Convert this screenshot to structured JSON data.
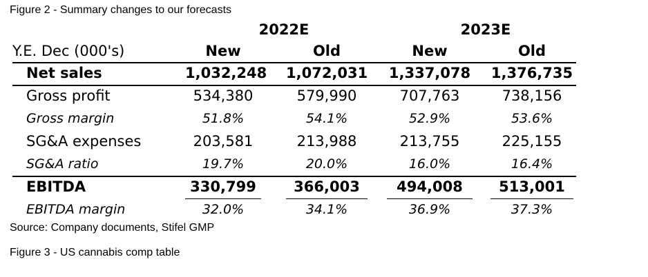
{
  "figure2": {
    "title": "Figure 2 - Summary changes to our forecasts"
  },
  "table": {
    "years": [
      "2022E",
      "2023E"
    ],
    "row_header": "Y.E. Dec (000's)",
    "columns": [
      "New",
      "Old",
      "New",
      "Old"
    ],
    "rows": [
      {
        "label": "Net sales",
        "values": [
          "1,032,248",
          "1,072,031",
          "1,337,078",
          "1,376,735"
        ]
      },
      {
        "label": "Gross profit",
        "values": [
          "534,380",
          "579,990",
          "707,763",
          "738,156"
        ]
      },
      {
        "label": "Gross margin",
        "values": [
          "51.8%",
          "54.1%",
          "52.9%",
          "53.6%"
        ]
      },
      {
        "label": "SG&A expenses",
        "values": [
          "203,581",
          "213,988",
          "213,755",
          "225,155"
        ]
      },
      {
        "label": "SG&A ratio",
        "values": [
          "19.7%",
          "20.0%",
          "16.0%",
          "16.4%"
        ]
      },
      {
        "label": "EBITDA",
        "values": [
          "330,799",
          "366,003",
          "494,008",
          "513,001"
        ]
      },
      {
        "label": "EBITDA margin",
        "values": [
          "32.0%",
          "34.1%",
          "36.9%",
          "37.3%"
        ]
      }
    ]
  },
  "source": "Source: Company documents, Stifel GMP",
  "figure3": {
    "title": "Figure 3 - US cannabis comp table"
  }
}
